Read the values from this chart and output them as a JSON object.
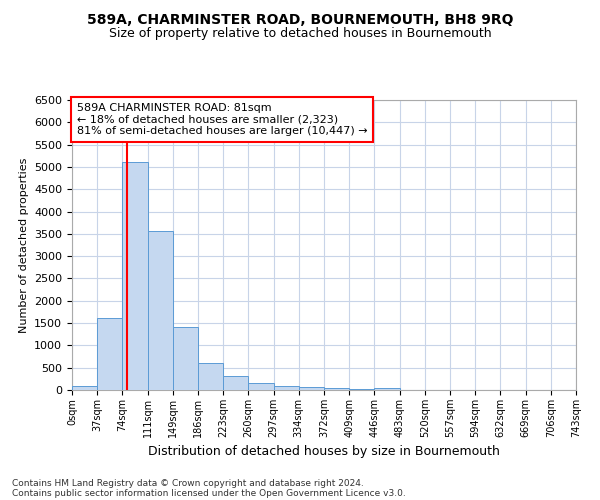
{
  "title1": "589A, CHARMINSTER ROAD, BOURNEMOUTH, BH8 9RQ",
  "title2": "Size of property relative to detached houses in Bournemouth",
  "xlabel": "Distribution of detached houses by size in Bournemouth",
  "ylabel": "Number of detached properties",
  "bin_labels": [
    "0sqm",
    "37sqm",
    "74sqm",
    "111sqm",
    "149sqm",
    "186sqm",
    "223sqm",
    "260sqm",
    "297sqm",
    "334sqm",
    "372sqm",
    "409sqm",
    "446sqm",
    "483sqm",
    "520sqm",
    "557sqm",
    "594sqm",
    "632sqm",
    "669sqm",
    "706sqm",
    "743sqm"
  ],
  "bar_heights": [
    100,
    1620,
    5100,
    3560,
    1420,
    600,
    310,
    160,
    100,
    70,
    50,
    20,
    50,
    5,
    2,
    1,
    0,
    0,
    0,
    0
  ],
  "bar_color": "#c5d8f0",
  "bar_edge_color": "#5b9bd5",
  "vline_x": 81,
  "bin_width": 37,
  "ylim": [
    0,
    6500
  ],
  "yticks": [
    0,
    500,
    1000,
    1500,
    2000,
    2500,
    3000,
    3500,
    4000,
    4500,
    5000,
    5500,
    6000,
    6500
  ],
  "annotation_title": "589A CHARMINSTER ROAD: 81sqm",
  "annotation_line1": "← 18% of detached houses are smaller (2,323)",
  "annotation_line2": "81% of semi-detached houses are larger (10,447) →",
  "annotation_box_color": "white",
  "annotation_box_edge": "red",
  "vline_color": "red",
  "footnote1": "Contains HM Land Registry data © Crown copyright and database right 2024.",
  "footnote2": "Contains public sector information licensed under the Open Government Licence v3.0.",
  "bg_color": "white",
  "grid_color": "#c8d4e8"
}
